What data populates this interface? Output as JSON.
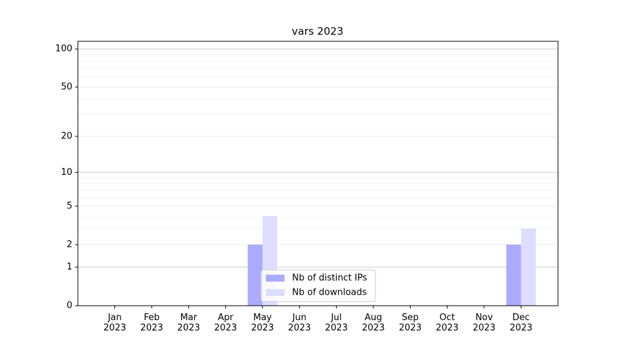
{
  "chart_data": {
    "type": "bar",
    "title": "vars 2023",
    "categories": [
      "Jan\n2023",
      "Feb\n2023",
      "Mar\n2023",
      "Apr\n2023",
      "May\n2023",
      "Jun\n2023",
      "Jul\n2023",
      "Aug\n2023",
      "Sep\n2023",
      "Oct\n2023",
      "Nov\n2023",
      "Dec\n2023"
    ],
    "series": [
      {
        "name": "Nb of distinct IPs",
        "color": "#aaaaff",
        "values": [
          0,
          0,
          0,
          0,
          2,
          0,
          0,
          0,
          0,
          0,
          0,
          2
        ]
      },
      {
        "name": "Nb of downloads",
        "color": "#ddddff",
        "values": [
          0,
          0,
          0,
          0,
          4,
          0,
          0,
          0,
          0,
          0,
          0,
          3
        ]
      }
    ],
    "yscale": "log1p",
    "ylim": [
      0,
      115
    ],
    "yticks": [
      0,
      1,
      2,
      5,
      10,
      20,
      50,
      100
    ],
    "minor_yticks": [
      3,
      4,
      6,
      7,
      8,
      9,
      30,
      40,
      60,
      70,
      80,
      90
    ],
    "grid": true,
    "legend": "lower center"
  }
}
